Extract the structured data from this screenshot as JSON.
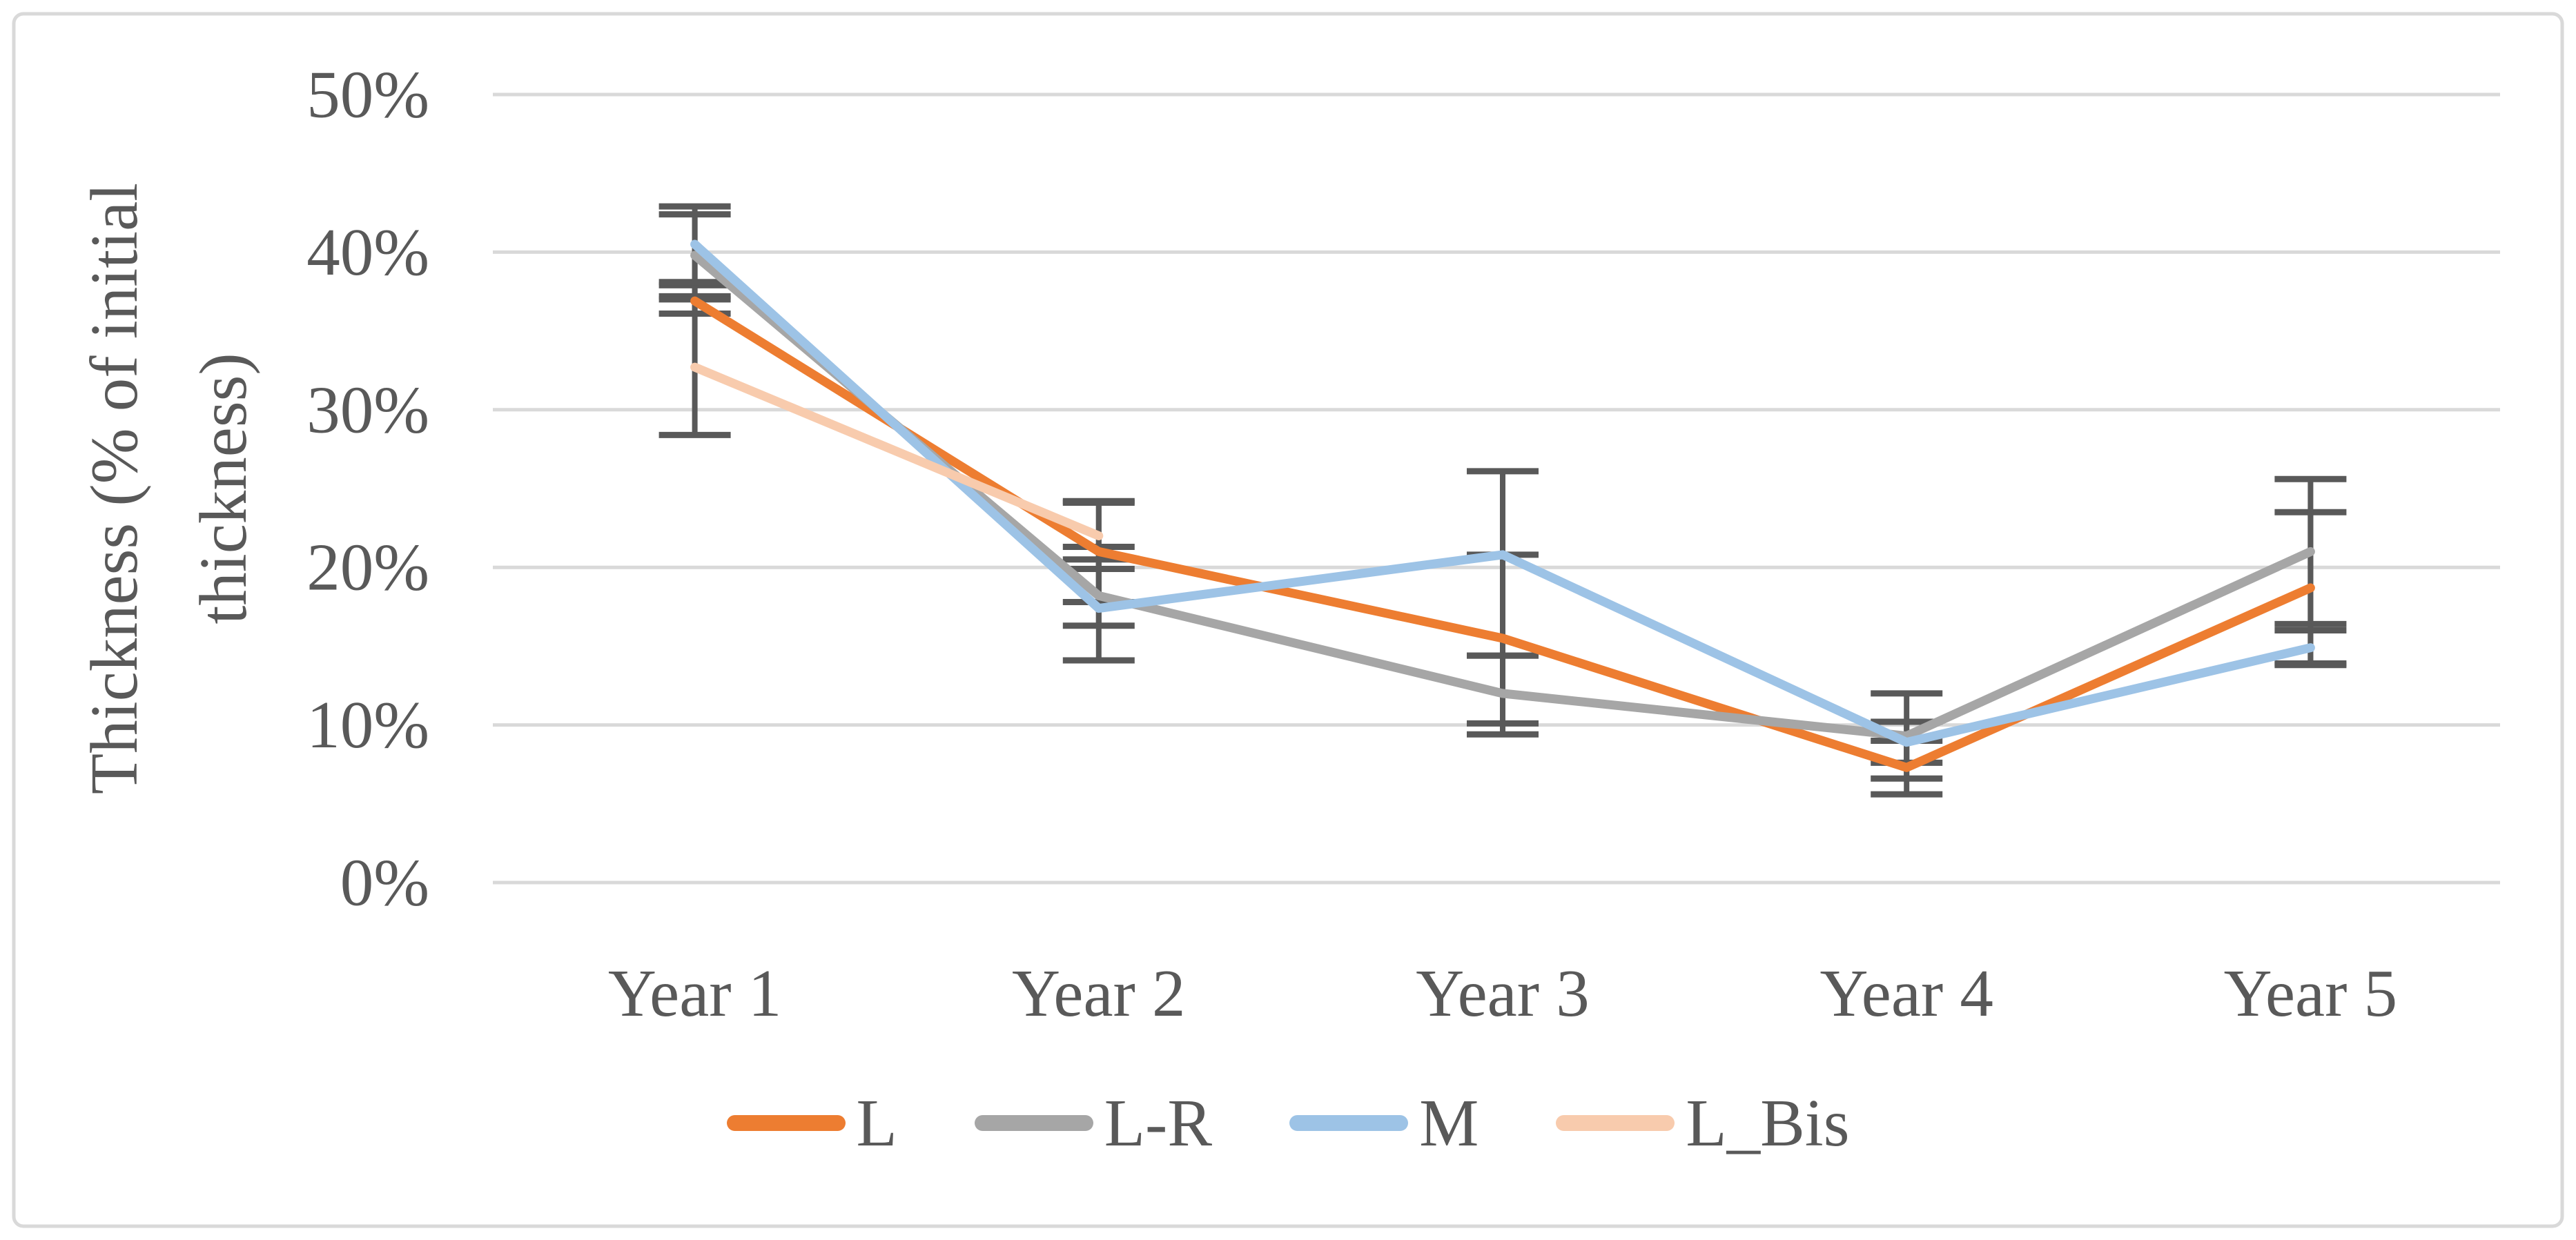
{
  "chart_data": {
    "type": "line",
    "title": "",
    "categories": [
      "Year 1",
      "Year 2",
      "Year 3",
      "Year 4",
      "Year 5"
    ],
    "ylabel": "Thickness (% of initial thickness)",
    "ylabel_lines": [
      "Thickness (% of initial",
      "thickness)"
    ],
    "xlabel": "",
    "y_axis": {
      "min": 0,
      "max": 50,
      "step": 10,
      "tick_labels": [
        "0%",
        "10%",
        "20%",
        "30%",
        "40%",
        "50%"
      ]
    },
    "grid": true,
    "legend_position": "bottom",
    "series": [
      {
        "name": "L",
        "color": "#ED7D31",
        "values": [
          36.9,
          21.0,
          15.5,
          7.3,
          18.7
        ],
        "err_up": [
          1.0,
          3.2,
          5.3,
          1.7,
          4.8
        ],
        "err_down": [
          0.8,
          3.2,
          5.4,
          1.7,
          4.8
        ]
      },
      {
        "name": "L-R",
        "color": "#A6A6A6",
        "values": [
          39.8,
          18.2,
          12.0,
          9.3,
          21.0
        ],
        "err_up": [
          2.6,
          3.1,
          2.4,
          2.7,
          4.6
        ],
        "err_down": [
          2.6,
          4.1,
          2.6,
          2.7,
          4.6
        ]
      },
      {
        "name": "M",
        "color": "#9DC3E6",
        "values": [
          40.5,
          17.4,
          20.8,
          8.9,
          14.9
        ],
        "err_up": [
          2.4,
          3.1,
          5.3,
          1.3,
          1.1
        ],
        "err_down": [
          2.4,
          1.1,
          6.4,
          1.3,
          1.1
        ]
      },
      {
        "name": "L_Bis",
        "color": "#F8CBAD",
        "values": [
          32.7,
          22.0,
          null,
          null,
          null
        ],
        "err_up": [
          4.3,
          2.1,
          null,
          null,
          null
        ],
        "err_down": [
          4.3,
          2.1,
          null,
          null,
          null
        ]
      }
    ],
    "colors": {
      "background": "#FFFFFF",
      "gridline": "#D9D9D9",
      "error_bar": "#595959",
      "text": "#595959",
      "border": "#D9D9D9"
    }
  }
}
